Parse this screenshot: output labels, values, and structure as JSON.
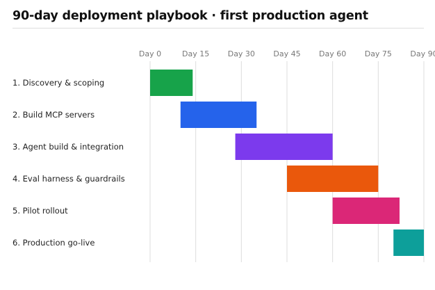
{
  "title": "90-day deployment playbook · first production agent",
  "chart_data": {
    "type": "gantt",
    "title": "90-day deployment playbook · first production agent",
    "xlabel": "",
    "ylabel": "",
    "xlim": [
      0,
      90
    ],
    "ticks": [
      0,
      15,
      30,
      45,
      60,
      75,
      90
    ],
    "tick_labels": [
      "Day 0",
      "Day 15",
      "Day 30",
      "Day 45",
      "Day 60",
      "Day 75",
      "Day 90"
    ],
    "grid": true,
    "tasks": [
      {
        "label": "1. Discovery & scoping",
        "start": 0,
        "end": 14,
        "color": "#17a34a"
      },
      {
        "label": "2. Build MCP servers",
        "start": 10,
        "end": 35,
        "color": "#2563eb"
      },
      {
        "label": "3. Agent build & integration",
        "start": 28,
        "end": 60,
        "color": "#7c3aed"
      },
      {
        "label": "4. Eval harness & guardrails",
        "start": 45,
        "end": 75,
        "color": "#ea580c"
      },
      {
        "label": "5. Pilot rollout",
        "start": 60,
        "end": 82,
        "color": "#db2777"
      },
      {
        "label": "6. Production go-live",
        "start": 80,
        "end": 90,
        "color": "#0d9f9a"
      }
    ]
  }
}
